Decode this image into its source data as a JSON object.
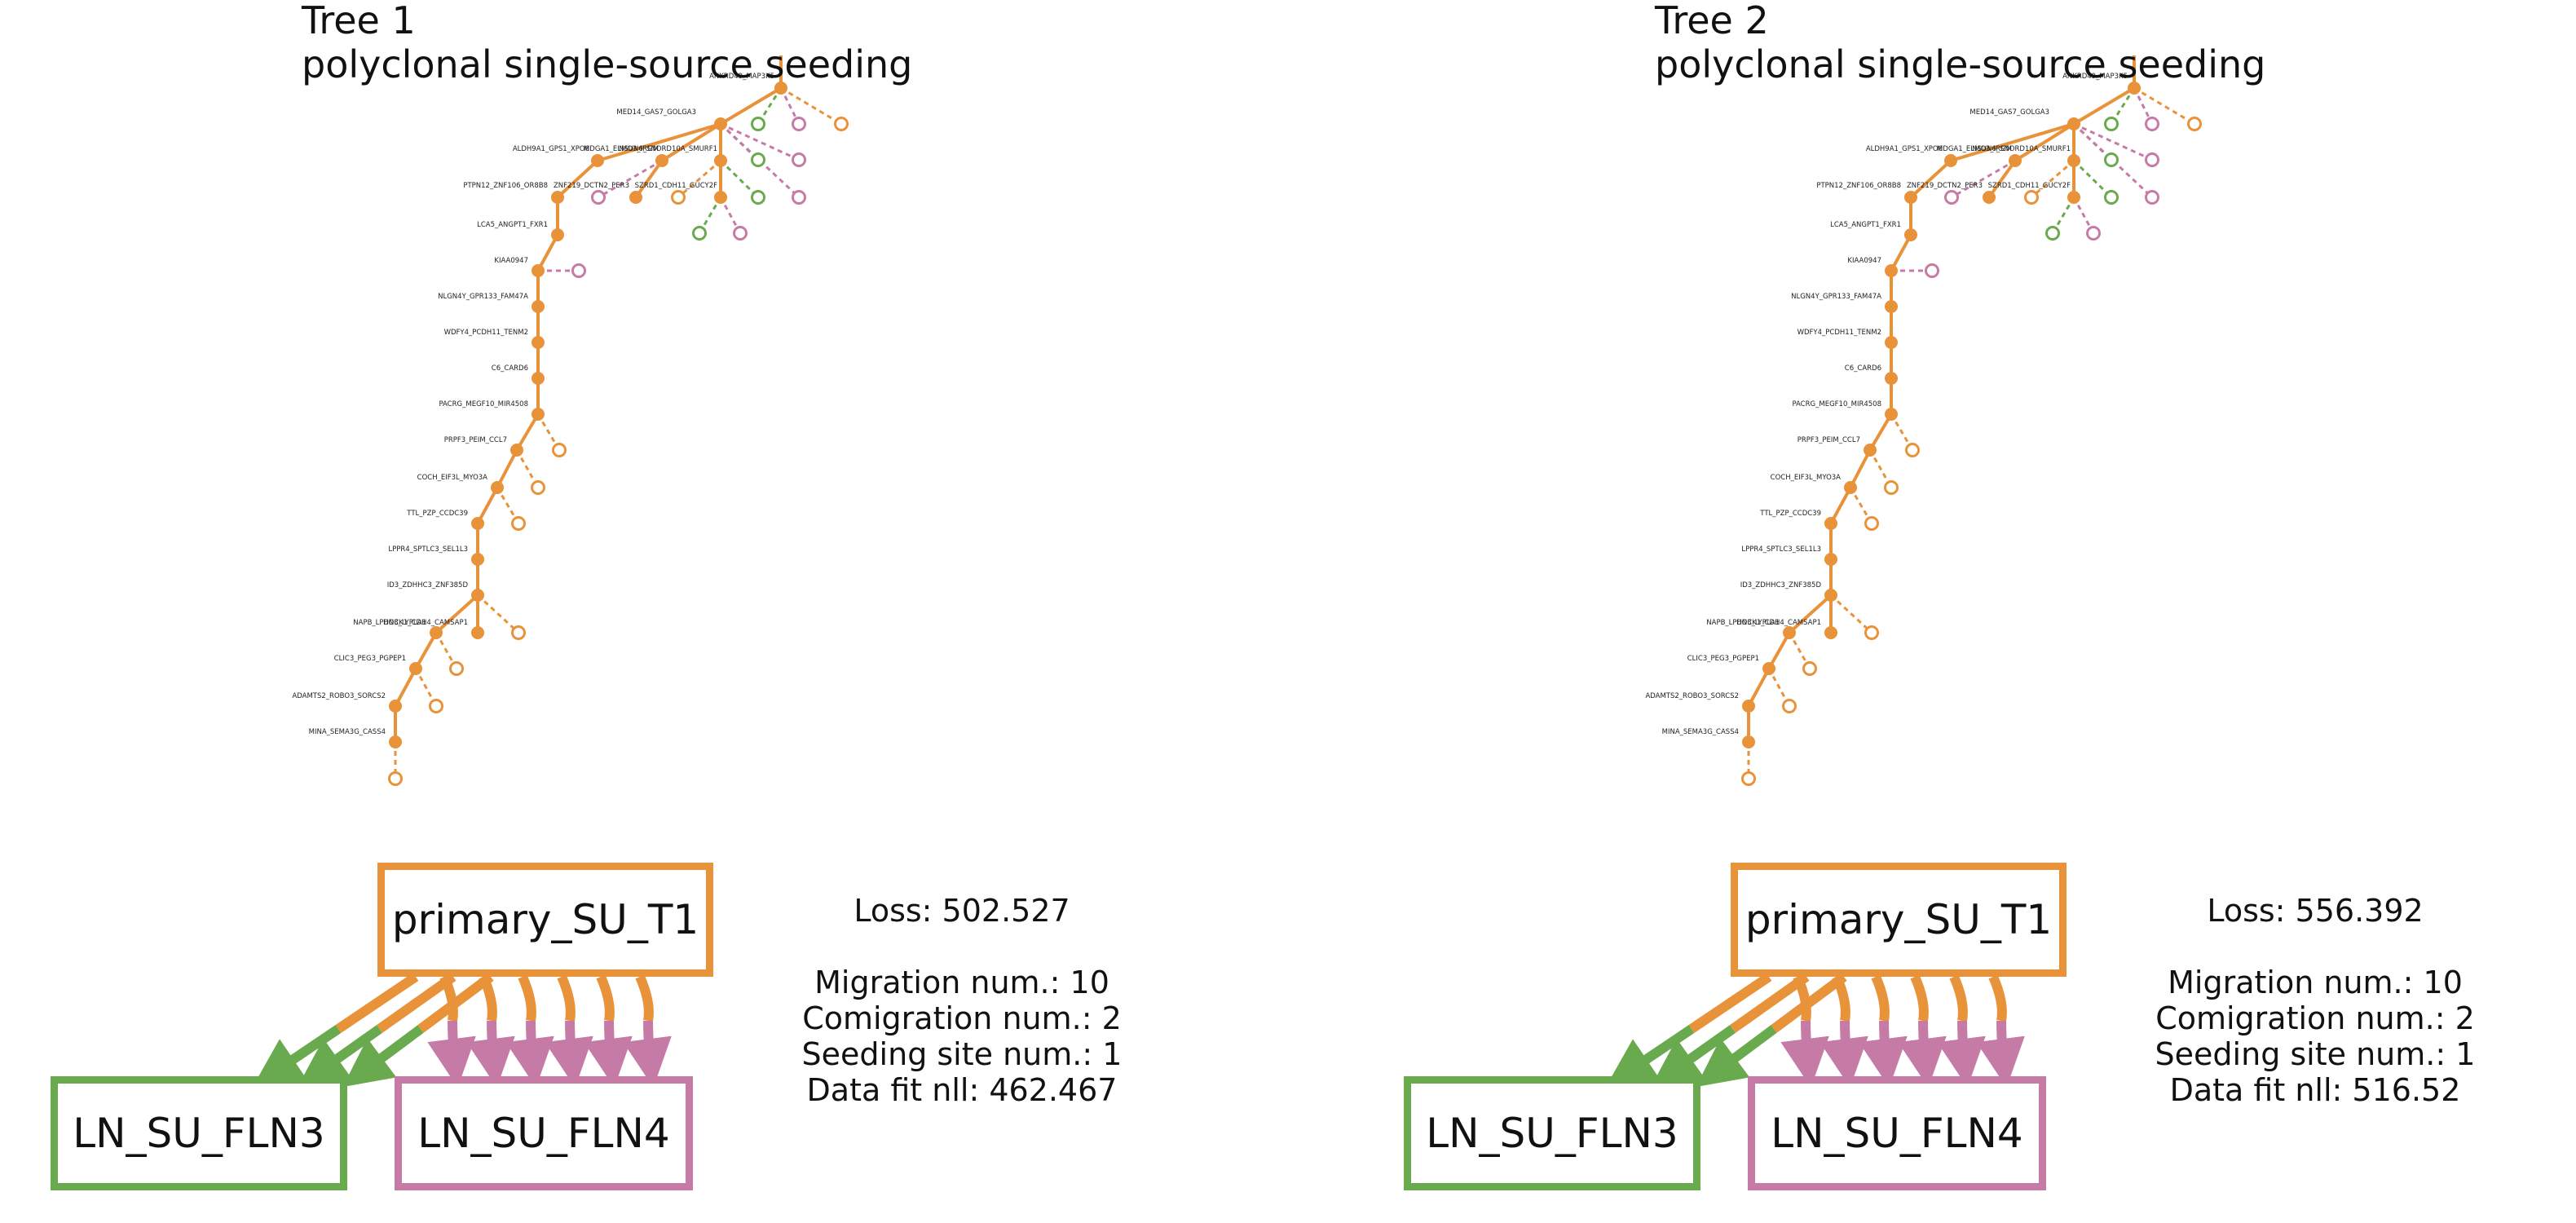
{
  "colors": {
    "primary": "#e8923a",
    "ln3": "#6aaa4f",
    "ln4": "#c67ba7"
  },
  "sites": {
    "primary": "primary_SU_T1",
    "ln3": "LN_SU_FLN3",
    "ln4": "LN_SU_FLN4"
  },
  "node_labels": {
    "root": "ANKRD49_MAP3K5",
    "med14": "MED14_GAS7_GOLGA3",
    "aldh": "ALDH9A1_GPS1_XPO6",
    "mdga": "MDGA1_ELMO3_IRGM",
    "nsun": "NSUN6_SNORD10A_SMURF1",
    "ptpn": "PTPN12_ZNF106_OR8B8",
    "znf219": "ZNF219_DCTN2_PER3",
    "szrd": "SZRD1_CDH11_GUCY2F",
    "lca5": "LCA5_ANGPT1_FXR1",
    "kiaa": "KIAA0947",
    "nlgn": "NLGN4Y_GPR133_FAM47A",
    "wdfy": "WDFY4_PCDH11_TENM2",
    "c6": "C6_CARD6",
    "pacrg": "PACRG_MEGF10_MIR4508",
    "prpf": "PRPF3_PEIM_CCL7",
    "coch": "COCH_EIF3L_MYO3A",
    "ttl": "TTL_PZP_CCDC39",
    "lppr": "LPPR4_SPTLC3_SEL1L3",
    "id3": "ID3_ZDHHC3_ZNF385D",
    "nap": "NAPB_LPHN3_LYPLA1",
    "dock": "DOCK1_CDH4_CAMSAP1",
    "clic": "CLIC3_PEG3_PGPEP1",
    "adam": "ADAMTS2_ROBO3_SORCS2",
    "mina": "MINA_SEMA3G_CASS4"
  },
  "trees": [
    {
      "title_line1": "Tree 1",
      "title_line2": "polyclonal single-source seeding",
      "loss": "Loss: 502.527",
      "stats": [
        "Migration num.: 10",
        "Comigration num.: 2",
        "Seeding site num.: 1",
        "Data fit nll: 462.467"
      ],
      "migrations_to_ln3": 3,
      "migrations_to_ln4": 6
    },
    {
      "title_line1": "Tree 2",
      "title_line2": "polyclonal single-source seeding",
      "loss": "Loss: 556.392",
      "stats": [
        "Migration num.: 10",
        "Comigration num.: 2",
        "Seeding site num.: 1",
        "Data fit nll: 516.52"
      ],
      "migrations_to_ln3": 3,
      "migrations_to_ln4": 6
    }
  ]
}
